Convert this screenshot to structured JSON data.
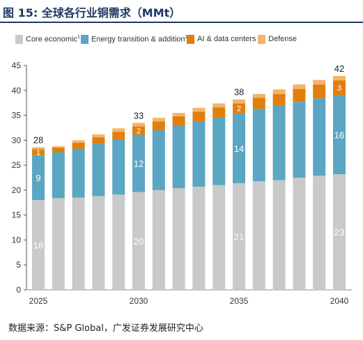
{
  "figure": {
    "title": "图 15: 全球各行业铜需求（MMt）",
    "source": "数据来源：S&P Global，广发证券发展研究中心"
  },
  "legend": {
    "items": [
      {
        "label": "Core economic",
        "superscript": "1",
        "color": "#c9c9c9"
      },
      {
        "label": "Energy transition & addition",
        "superscript": "2",
        "color": "#5ba6c3"
      },
      {
        "label": "AI & data centers",
        "superscript": "",
        "color": "#e07f0e"
      },
      {
        "label": "Defense",
        "superscript": "",
        "color": "#f3b56a"
      }
    ]
  },
  "chart_data": {
    "type": "bar",
    "stacked": true,
    "categories": [
      "2025",
      "2026",
      "2027",
      "2028",
      "2029",
      "2030",
      "2031",
      "2032",
      "2033",
      "2034",
      "2035",
      "2036",
      "2037",
      "2038",
      "2039",
      "2040"
    ],
    "x_tick_labels": [
      "2025",
      "",
      "",
      "",
      "",
      "2030",
      "",
      "",
      "",
      "",
      "2035",
      "",
      "",
      "",
      "",
      "2040"
    ],
    "series": [
      {
        "name": "Core economic",
        "color": "#c9c9c9",
        "values": [
          18,
          18.4,
          18.5,
          18.8,
          19.1,
          19.6,
          20.0,
          20.4,
          20.7,
          21.0,
          21.4,
          21.8,
          22.0,
          22.5,
          22.9,
          23.2
        ],
        "labels": [
          "18",
          "",
          "",
          "",
          "",
          "20",
          "",
          "",
          "",
          "",
          "21",
          "",
          "",
          "",
          "",
          "23"
        ]
      },
      {
        "name": "Energy transition & addition",
        "color": "#5ba6c3",
        "values": [
          9,
          9.2,
          9.8,
          10.5,
          11.1,
          11.5,
          12.0,
          12.5,
          13.0,
          13.6,
          14.0,
          14.5,
          14.9,
          15.2,
          15.5,
          15.8
        ],
        "labels": [
          "9",
          "",
          "",
          "",
          "",
          "12",
          "",
          "",
          "",
          "",
          "14",
          "",
          "",
          "",
          "",
          "16"
        ]
      },
      {
        "name": "AI & data centers",
        "color": "#e07f0e",
        "values": [
          1.2,
          0.9,
          1.2,
          1.3,
          1.5,
          1.7,
          1.8,
          1.9,
          2.0,
          2.0,
          2.0,
          2.2,
          2.4,
          2.6,
          2.8,
          3.0
        ],
        "labels": [
          "1",
          "",
          "",
          "",
          "",
          "2",
          "",
          "",
          "",
          "",
          "2",
          "",
          "",
          "",
          "",
          "3"
        ]
      },
      {
        "name": "Defense",
        "color": "#f3b56a",
        "values": [
          0.4,
          0.3,
          0.5,
          0.6,
          0.7,
          0.7,
          0.7,
          0.7,
          0.8,
          0.8,
          0.8,
          0.8,
          0.9,
          0.9,
          0.9,
          0.9
        ],
        "labels": [
          "",
          "",
          "",
          "",
          "",
          "",
          "",
          "",
          "",
          "",
          "",
          "",
          "",
          "",
          "",
          ""
        ]
      }
    ],
    "total_labels": [
      "28",
      "",
      "",
      "",
      "",
      "33",
      "",
      "",
      "",
      "",
      "38",
      "",
      "",
      "",
      "",
      "42"
    ],
    "y_ticks": [
      0,
      5,
      10,
      15,
      20,
      25,
      30,
      35,
      40,
      45
    ],
    "ylim": [
      0,
      45
    ],
    "grid": false,
    "legend_position": "top-left",
    "xlabel": "",
    "ylabel": ""
  }
}
